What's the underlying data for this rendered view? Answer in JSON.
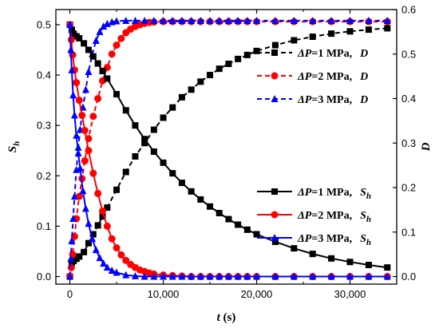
{
  "chart_data": {
    "type": "line",
    "title": "",
    "xlabel": {
      "main": "t",
      "unit": " (s)"
    },
    "ylabel_left": {
      "main": "S",
      "sub": "h"
    },
    "ylabel_right": "D",
    "xlim": [
      -1500,
      35000
    ],
    "ylim_left": [
      -0.015,
      0.53
    ],
    "ylim_right": [
      -0.017,
      0.6
    ],
    "x_ticks": [
      {
        "value": 0,
        "label": "0"
      },
      {
        "value": 10000,
        "label": "10,000"
      },
      {
        "value": 20000,
        "label": "20,000"
      },
      {
        "value": 30000,
        "label": "30,000"
      }
    ],
    "y_left_ticks": [
      {
        "value": 0.0,
        "label": "0.0"
      },
      {
        "value": 0.1,
        "label": "0.1"
      },
      {
        "value": 0.2,
        "label": "0.2"
      },
      {
        "value": 0.3,
        "label": "0.3"
      },
      {
        "value": 0.4,
        "label": "0.4"
      },
      {
        "value": 0.5,
        "label": "0.5"
      }
    ],
    "y_right_ticks": [
      {
        "value": 0.0,
        "label": "0.0"
      },
      {
        "value": 0.1,
        "label": "0.1"
      },
      {
        "value": 0.2,
        "label": "0.2"
      },
      {
        "value": 0.3,
        "label": "0.3"
      },
      {
        "value": 0.4,
        "label": "0.4"
      },
      {
        "value": 0.5,
        "label": "0.5"
      },
      {
        "value": 0.6,
        "label": "0.6"
      }
    ],
    "grid": false,
    "series": [
      {
        "legend": {
          "pre": "ΔP",
          "post": "=1 MPa,",
          "var": "D",
          "sub": ""
        },
        "color": "#000000",
        "marker": "square",
        "dash": true,
        "axis": "right",
        "x": [
          0,
          200,
          400,
          700,
          1000,
          1500,
          2000,
          2500,
          3000,
          3500,
          4000,
          5000,
          6000,
          7000,
          8000,
          9000,
          10000,
          11000,
          12000,
          13000,
          14000,
          15000,
          16000,
          17000,
          18000,
          19000,
          20000,
          22000,
          24000,
          26000,
          28000,
          30000,
          32000,
          34000
        ],
        "y": [
          0.0,
          0.03,
          0.035,
          0.04,
          0.045,
          0.055,
          0.075,
          0.095,
          0.115,
          0.135,
          0.155,
          0.195,
          0.235,
          0.27,
          0.3,
          0.33,
          0.357,
          0.38,
          0.403,
          0.42,
          0.438,
          0.453,
          0.467,
          0.478,
          0.489,
          0.498,
          0.507,
          0.52,
          0.531,
          0.539,
          0.546,
          0.551,
          0.555,
          0.558
        ]
      },
      {
        "legend": {
          "pre": "ΔP",
          "post": "=2 MPa,",
          "var": "D",
          "sub": ""
        },
        "color": "#ff0000",
        "marker": "circle",
        "dash": true,
        "axis": "right",
        "x": [
          0,
          150,
          300,
          500,
          700,
          1000,
          1300,
          1600,
          2000,
          2500,
          3000,
          3500,
          4000,
          4500,
          5000,
          5500,
          6000,
          6500,
          7000,
          7500,
          8000,
          8500,
          9000,
          10000,
          11000,
          12000,
          13000,
          14000,
          15000,
          16000,
          17000,
          18000,
          19000,
          20000,
          22000,
          24000,
          26000,
          28000,
          30000,
          32000,
          34000
        ],
        "y": [
          0.0,
          0.02,
          0.05,
          0.09,
          0.13,
          0.18,
          0.22,
          0.26,
          0.31,
          0.36,
          0.4,
          0.44,
          0.47,
          0.5,
          0.52,
          0.535,
          0.548,
          0.556,
          0.562,
          0.566,
          0.569,
          0.571,
          0.572,
          0.573,
          0.573,
          0.573,
          0.573,
          0.573,
          0.573,
          0.573,
          0.573,
          0.573,
          0.573,
          0.573,
          0.573,
          0.573,
          0.573,
          0.573,
          0.573,
          0.573,
          0.573
        ]
      },
      {
        "legend": {
          "pre": "ΔP",
          "post": "=3 MPa,",
          "var": "D",
          "sub": ""
        },
        "color": "#0000ff",
        "marker": "triangle",
        "dash": true,
        "axis": "right",
        "x": [
          0,
          100,
          200,
          350,
          500,
          700,
          900,
          1100,
          1400,
          1700,
          2000,
          2400,
          2800,
          3200,
          3600,
          4000,
          4500,
          5000,
          6000,
          7000,
          8000,
          9000,
          10000,
          11000,
          12000,
          13000,
          14000,
          15000,
          16000,
          17000,
          18000,
          19000,
          20000,
          22000,
          24000,
          26000,
          28000,
          30000,
          32000,
          34000
        ],
        "y": [
          0.0,
          0.04,
          0.08,
          0.13,
          0.18,
          0.24,
          0.29,
          0.33,
          0.38,
          0.42,
          0.46,
          0.5,
          0.53,
          0.55,
          0.562,
          0.568,
          0.572,
          0.574,
          0.575,
          0.575,
          0.575,
          0.575,
          0.575,
          0.575,
          0.575,
          0.575,
          0.575,
          0.575,
          0.575,
          0.575,
          0.575,
          0.575,
          0.575,
          0.575,
          0.575,
          0.575,
          0.575,
          0.575,
          0.575,
          0.575
        ]
      },
      {
        "legend": {
          "pre": "ΔP",
          "post": "=1 MPa,",
          "var": "S",
          "sub": "h"
        },
        "color": "#000000",
        "marker": "square",
        "dash": false,
        "axis": "left",
        "x": [
          0,
          200,
          400,
          700,
          1000,
          1500,
          2000,
          2500,
          3000,
          3500,
          4000,
          5000,
          6000,
          7000,
          8000,
          9000,
          10000,
          11000,
          12000,
          13000,
          14000,
          15000,
          16000,
          17000,
          18000,
          19000,
          20000,
          22000,
          24000,
          26000,
          28000,
          30000,
          32000,
          34000
        ],
        "y": [
          0.5,
          0.49,
          0.482,
          0.477,
          0.473,
          0.463,
          0.45,
          0.437,
          0.423,
          0.408,
          0.393,
          0.362,
          0.33,
          0.3,
          0.273,
          0.248,
          0.226,
          0.205,
          0.186,
          0.169,
          0.153,
          0.139,
          0.126,
          0.114,
          0.103,
          0.093,
          0.084,
          0.069,
          0.056,
          0.045,
          0.036,
          0.029,
          0.023,
          0.018
        ]
      },
      {
        "legend": {
          "pre": "ΔP",
          "post": "=2 MPa,",
          "var": "S",
          "sub": "h"
        },
        "color": "#ff0000",
        "marker": "circle",
        "dash": false,
        "axis": "left",
        "x": [
          0,
          150,
          300,
          500,
          700,
          1000,
          1300,
          1600,
          2000,
          2500,
          3000,
          3500,
          4000,
          4500,
          5000,
          5500,
          6000,
          6500,
          7000,
          7500,
          8000,
          8500,
          9000,
          10000,
          11000,
          12000,
          13000,
          14000,
          15000,
          16000,
          17000,
          18000,
          19000,
          20000,
          22000,
          24000,
          26000,
          28000,
          30000,
          32000,
          34000
        ],
        "y": [
          0.5,
          0.47,
          0.44,
          0.41,
          0.385,
          0.35,
          0.32,
          0.29,
          0.25,
          0.205,
          0.165,
          0.13,
          0.1,
          0.075,
          0.057,
          0.043,
          0.032,
          0.024,
          0.018,
          0.013,
          0.01,
          0.007,
          0.005,
          0.003,
          0.002,
          0.001,
          0.0,
          0.0,
          0.0,
          0.0,
          0.0,
          0.0,
          0.0,
          0.0,
          0.0,
          0.0,
          0.0,
          0.0,
          0.0,
          0.0,
          0.0
        ]
      },
      {
        "legend": {
          "pre": "ΔP",
          "post": "=3 MPa,",
          "var": "S",
          "sub": "h"
        },
        "color": "#0000ff",
        "marker": "triangle",
        "dash": false,
        "axis": "left",
        "x": [
          0,
          100,
          200,
          350,
          500,
          700,
          900,
          1100,
          1400,
          1700,
          2000,
          2400,
          2800,
          3200,
          3600,
          4000,
          4500,
          5000,
          6000,
          7000,
          8000,
          9000,
          10000,
          11000,
          12000,
          13000,
          14000,
          15000,
          16000,
          17000,
          18000,
          19000,
          20000,
          22000,
          24000,
          26000,
          28000,
          30000,
          32000,
          34000
        ],
        "y": [
          0.5,
          0.45,
          0.41,
          0.36,
          0.32,
          0.28,
          0.245,
          0.215,
          0.17,
          0.135,
          0.105,
          0.075,
          0.053,
          0.037,
          0.026,
          0.018,
          0.012,
          0.008,
          0.003,
          0.001,
          0.0,
          0.0,
          0.0,
          0.0,
          0.0,
          0.0,
          0.0,
          0.0,
          0.0,
          0.0,
          0.0,
          0.0,
          0.0,
          0.0,
          0.0,
          0.0,
          0.0,
          0.0,
          0.0,
          0.0
        ]
      }
    ],
    "legend_groups": [
      {
        "position": "top-right",
        "series": [
          0,
          1,
          2
        ]
      },
      {
        "position": "bottom-right",
        "series": [
          3,
          4,
          5
        ]
      }
    ]
  }
}
